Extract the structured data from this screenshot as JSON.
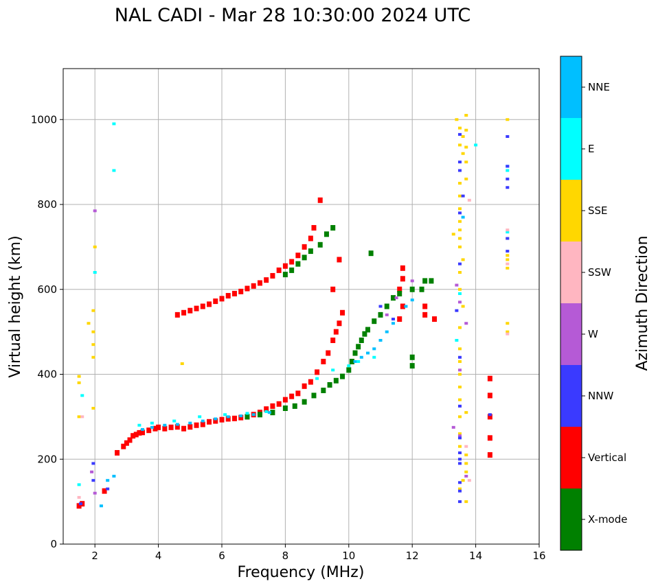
{
  "chart_data": {
    "type": "scatter",
    "title": "NAL CADI - Mar 28 10:30:00 2024 UTC",
    "xlabel": "Frequency (MHz)",
    "ylabel": "Virtual height (km)",
    "xlim": [
      1,
      16
    ],
    "ylim": [
      0,
      1120
    ],
    "xticks": [
      2,
      4,
      6,
      8,
      10,
      12,
      14,
      16
    ],
    "yticks": [
      0,
      200,
      400,
      600,
      800,
      1000
    ],
    "grid": true,
    "colorbar": {
      "title": "Azimuth Direction",
      "categories": [
        {
          "name": "X-mode",
          "color": "#008000"
        },
        {
          "name": "Vertical",
          "color": "#ff0000"
        },
        {
          "name": "NNW",
          "color": "#3a3aff"
        },
        {
          "name": "W",
          "color": "#b55ad6"
        },
        {
          "name": "SSW",
          "color": "#ffb6c1"
        },
        {
          "name": "SSE",
          "color": "#ffd700"
        },
        {
          "name": "E",
          "color": "#00ffff"
        },
        {
          "name": "NNE",
          "color": "#00bfff"
        }
      ]
    },
    "series": [
      {
        "name": "Vertical",
        "points": [
          [
            1.5,
            90
          ],
          [
            1.6,
            95
          ],
          [
            2.3,
            125
          ],
          [
            2.7,
            215
          ],
          [
            2.9,
            230
          ],
          [
            3.0,
            238
          ],
          [
            3.1,
            245
          ],
          [
            3.2,
            255
          ],
          [
            3.3,
            258
          ],
          [
            3.4,
            262
          ],
          [
            3.5,
            263
          ],
          [
            3.7,
            268
          ],
          [
            3.9,
            272
          ],
          [
            4.0,
            275
          ],
          [
            4.2,
            272
          ],
          [
            4.4,
            275
          ],
          [
            4.6,
            276
          ],
          [
            4.8,
            272
          ],
          [
            5.0,
            276
          ],
          [
            5.2,
            280
          ],
          [
            5.4,
            282
          ],
          [
            5.6,
            288
          ],
          [
            5.8,
            290
          ],
          [
            6.0,
            293
          ],
          [
            6.2,
            295
          ],
          [
            6.4,
            296
          ],
          [
            6.6,
            298
          ],
          [
            6.8,
            300
          ],
          [
            7.0,
            305
          ],
          [
            7.2,
            310
          ],
          [
            7.4,
            318
          ],
          [
            7.6,
            325
          ],
          [
            7.8,
            330
          ],
          [
            8.0,
            340
          ],
          [
            8.2,
            348
          ],
          [
            8.4,
            355
          ],
          [
            8.6,
            372
          ],
          [
            8.8,
            382
          ],
          [
            9.0,
            405
          ],
          [
            9.2,
            430
          ],
          [
            9.35,
            450
          ],
          [
            9.5,
            480
          ],
          [
            9.6,
            500
          ],
          [
            9.7,
            520
          ],
          [
            9.8,
            545
          ],
          [
            9.5,
            600
          ],
          [
            9.7,
            670
          ],
          [
            4.6,
            540
          ],
          [
            4.8,
            545
          ],
          [
            5.0,
            550
          ],
          [
            5.2,
            555
          ],
          [
            5.4,
            560
          ],
          [
            5.6,
            565
          ],
          [
            5.8,
            572
          ],
          [
            6.0,
            578
          ],
          [
            6.2,
            585
          ],
          [
            6.4,
            590
          ],
          [
            6.6,
            595
          ],
          [
            6.8,
            602
          ],
          [
            7.0,
            608
          ],
          [
            7.2,
            615
          ],
          [
            7.4,
            622
          ],
          [
            7.6,
            632
          ],
          [
            7.8,
            645
          ],
          [
            8.0,
            655
          ],
          [
            8.2,
            665
          ],
          [
            8.4,
            680
          ],
          [
            8.6,
            700
          ],
          [
            8.8,
            720
          ],
          [
            8.9,
            745
          ],
          [
            9.1,
            810
          ],
          [
            11.6,
            530
          ],
          [
            11.7,
            560
          ],
          [
            11.6,
            600
          ],
          [
            11.7,
            625
          ],
          [
            11.7,
            650
          ],
          [
            12.4,
            540
          ],
          [
            12.4,
            560
          ],
          [
            12.7,
            530
          ],
          [
            14.45,
            210
          ],
          [
            14.45,
            250
          ],
          [
            14.45,
            300
          ],
          [
            14.45,
            350
          ],
          [
            14.45,
            390
          ]
        ]
      },
      {
        "name": "X-mode",
        "points": [
          [
            6.8,
            300
          ],
          [
            7.2,
            305
          ],
          [
            7.6,
            310
          ],
          [
            8.0,
            320
          ],
          [
            8.3,
            325
          ],
          [
            8.6,
            335
          ],
          [
            8.9,
            350
          ],
          [
            9.2,
            362
          ],
          [
            9.4,
            375
          ],
          [
            9.6,
            385
          ],
          [
            9.8,
            395
          ],
          [
            10.0,
            410
          ],
          [
            10.1,
            430
          ],
          [
            10.2,
            450
          ],
          [
            10.3,
            465
          ],
          [
            10.4,
            480
          ],
          [
            10.5,
            495
          ],
          [
            10.6,
            505
          ],
          [
            10.8,
            525
          ],
          [
            11.0,
            540
          ],
          [
            11.2,
            560
          ],
          [
            11.4,
            580
          ],
          [
            11.6,
            590
          ],
          [
            12.0,
            600
          ],
          [
            12.3,
            600
          ],
          [
            12.4,
            620
          ],
          [
            12.6,
            620
          ],
          [
            12.0,
            440
          ],
          [
            12.0,
            420
          ],
          [
            8.0,
            635
          ],
          [
            8.2,
            645
          ],
          [
            8.4,
            660
          ],
          [
            8.6,
            675
          ],
          [
            8.8,
            690
          ],
          [
            9.1,
            705
          ],
          [
            9.3,
            730
          ],
          [
            9.5,
            745
          ],
          [
            10.7,
            685
          ]
        ]
      },
      {
        "name": "NNE",
        "points": [
          [
            3.5,
            270
          ],
          [
            3.8,
            275
          ],
          [
            4.2,
            280
          ],
          [
            4.6,
            282
          ],
          [
            5.0,
            285
          ],
          [
            5.4,
            290
          ],
          [
            5.8,
            295
          ],
          [
            6.2,
            300
          ],
          [
            6.6,
            302
          ],
          [
            7.0,
            305
          ],
          [
            7.5,
            310
          ],
          [
            10.2,
            430
          ],
          [
            10.4,
            440
          ],
          [
            10.6,
            450
          ],
          [
            10.8,
            460
          ],
          [
            11.0,
            480
          ],
          [
            11.2,
            500
          ],
          [
            11.4,
            520
          ],
          [
            11.8,
            560
          ],
          [
            12.0,
            575
          ],
          [
            2.2,
            90
          ],
          [
            2.4,
            150
          ],
          [
            2.6,
            160
          ],
          [
            13.6,
            770
          ],
          [
            15.0,
            890
          ]
        ]
      },
      {
        "name": "E",
        "points": [
          [
            1.5,
            140
          ],
          [
            1.6,
            350
          ],
          [
            2.0,
            640
          ],
          [
            2.6,
            990
          ],
          [
            2.6,
            880
          ],
          [
            3.4,
            280
          ],
          [
            3.8,
            285
          ],
          [
            4.5,
            290
          ],
          [
            5.3,
            300
          ],
          [
            6.1,
            305
          ],
          [
            6.8,
            308
          ],
          [
            7.4,
            312
          ],
          [
            9.0,
            390
          ],
          [
            9.5,
            410
          ],
          [
            10.0,
            420
          ],
          [
            10.3,
            430
          ],
          [
            10.8,
            440
          ],
          [
            13.4,
            480
          ],
          [
            13.5,
            590
          ],
          [
            14.0,
            940
          ],
          [
            15.0,
            880
          ],
          [
            15.0,
            735
          ]
        ]
      },
      {
        "name": "SSE",
        "points": [
          [
            1.5,
            380
          ],
          [
            1.5,
            395
          ],
          [
            1.5,
            300
          ],
          [
            1.8,
            520
          ],
          [
            1.95,
            550
          ],
          [
            1.95,
            500
          ],
          [
            1.95,
            470
          ],
          [
            1.95,
            440
          ],
          [
            1.95,
            320
          ],
          [
            2.0,
            700
          ],
          [
            4.75,
            425
          ],
          [
            13.4,
            1000
          ],
          [
            13.5,
            980
          ],
          [
            13.6,
            960
          ],
          [
            13.5,
            940
          ],
          [
            13.6,
            920
          ],
          [
            13.7,
            1010
          ],
          [
            13.7,
            975
          ],
          [
            13.7,
            935
          ],
          [
            13.7,
            900
          ],
          [
            13.7,
            860
          ],
          [
            13.5,
            850
          ],
          [
            13.5,
            820
          ],
          [
            13.5,
            790
          ],
          [
            13.5,
            760
          ],
          [
            13.5,
            740
          ],
          [
            13.5,
            720
          ],
          [
            13.3,
            730
          ],
          [
            13.5,
            700
          ],
          [
            13.6,
            670
          ],
          [
            13.5,
            640
          ],
          [
            13.5,
            600
          ],
          [
            13.6,
            560
          ],
          [
            13.5,
            510
          ],
          [
            13.5,
            460
          ],
          [
            13.5,
            430
          ],
          [
            13.5,
            400
          ],
          [
            13.5,
            370
          ],
          [
            13.5,
            340
          ],
          [
            13.5,
            300
          ],
          [
            13.7,
            310
          ],
          [
            13.5,
            260
          ],
          [
            13.5,
            230
          ],
          [
            13.7,
            210
          ],
          [
            13.7,
            190
          ],
          [
            13.7,
            170
          ],
          [
            13.6,
            150
          ],
          [
            13.5,
            130
          ],
          [
            13.7,
            100
          ],
          [
            15.0,
            1000
          ],
          [
            15.0,
            720
          ],
          [
            15.0,
            680
          ],
          [
            15.0,
            670
          ],
          [
            15.0,
            650
          ],
          [
            15.0,
            520
          ],
          [
            15.0,
            500
          ]
        ]
      },
      {
        "name": "SSW",
        "points": [
          [
            1.5,
            110
          ],
          [
            1.6,
            300
          ],
          [
            13.8,
            810
          ],
          [
            13.7,
            230
          ],
          [
            13.8,
            150
          ],
          [
            15.0,
            740
          ],
          [
            15.0,
            660
          ],
          [
            15.0,
            495
          ]
        ]
      },
      {
        "name": "W",
        "points": [
          [
            1.9,
            170
          ],
          [
            2.0,
            120
          ],
          [
            2.0,
            785
          ],
          [
            13.5,
            880
          ],
          [
            13.4,
            610
          ],
          [
            13.5,
            570
          ],
          [
            13.5,
            410
          ],
          [
            13.5,
            325
          ],
          [
            13.3,
            275
          ],
          [
            13.5,
            255
          ],
          [
            13.7,
            160
          ],
          [
            11.2,
            540
          ],
          [
            11.5,
            580
          ],
          [
            12.0,
            620
          ],
          [
            13.7,
            520
          ]
        ]
      },
      {
        "name": "NNW",
        "points": [
          [
            1.55,
            95
          ],
          [
            1.95,
            190
          ],
          [
            1.95,
            150
          ],
          [
            2.4,
            130
          ],
          [
            13.5,
            965
          ],
          [
            13.5,
            900
          ],
          [
            13.5,
            880
          ],
          [
            13.6,
            820
          ],
          [
            13.5,
            780
          ],
          [
            13.5,
            660
          ],
          [
            13.4,
            550
          ],
          [
            13.5,
            440
          ],
          [
            13.5,
            325
          ],
          [
            13.5,
            250
          ],
          [
            13.5,
            215
          ],
          [
            13.5,
            200
          ],
          [
            13.5,
            190
          ],
          [
            13.5,
            145
          ],
          [
            13.5,
            125
          ],
          [
            13.5,
            100
          ],
          [
            15.0,
            960
          ],
          [
            15.0,
            890
          ],
          [
            15.0,
            860
          ],
          [
            15.0,
            840
          ],
          [
            15.0,
            720
          ],
          [
            15.0,
            690
          ],
          [
            14.45,
            305
          ],
          [
            11.0,
            560
          ],
          [
            11.4,
            530
          ]
        ]
      }
    ]
  }
}
